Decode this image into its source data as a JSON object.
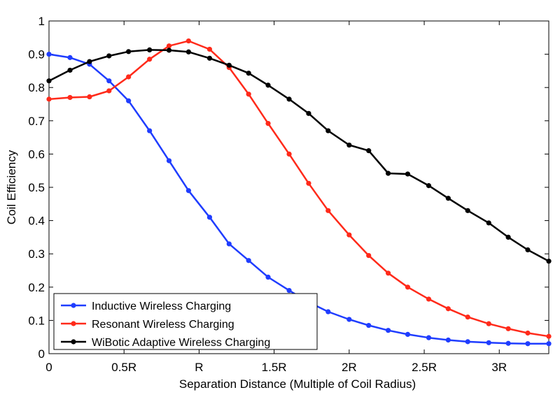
{
  "chart_data": {
    "type": "line",
    "xlabel": "Separation Distance (Multiple of Coil Radius)",
    "ylabel": "Coil Efficiency",
    "xlim": [
      0,
      3.33
    ],
    "ylim": [
      0,
      1
    ],
    "x_ticks": [
      {
        "value": 0,
        "label": "0"
      },
      {
        "value": 0.5,
        "label": "0.5R"
      },
      {
        "value": 1,
        "label": "R"
      },
      {
        "value": 1.5,
        "label": "1.5R"
      },
      {
        "value": 2,
        "label": "2R"
      },
      {
        "value": 2.5,
        "label": "2.5R"
      },
      {
        "value": 3,
        "label": "3R"
      }
    ],
    "y_ticks": [
      {
        "value": 0,
        "label": "0"
      },
      {
        "value": 0.1,
        "label": "0.1"
      },
      {
        "value": 0.2,
        "label": "0.2"
      },
      {
        "value": 0.3,
        "label": "0.3"
      },
      {
        "value": 0.4,
        "label": "0.4"
      },
      {
        "value": 0.5,
        "label": "0.5"
      },
      {
        "value": 0.6,
        "label": "0.6"
      },
      {
        "value": 0.7,
        "label": "0.7"
      },
      {
        "value": 0.8,
        "label": "0.8"
      },
      {
        "value": 0.9,
        "label": "0.9"
      },
      {
        "value": 1,
        "label": "1"
      }
    ],
    "x": [
      0,
      0.14,
      0.27,
      0.4,
      0.53,
      0.67,
      0.8,
      0.93,
      1.07,
      1.2,
      1.33,
      1.46,
      1.6,
      1.73,
      1.86,
      2.0,
      2.13,
      2.26,
      2.39,
      2.53,
      2.66,
      2.79,
      2.93,
      3.06,
      3.19,
      3.33
    ],
    "series": [
      {
        "name": "Inductive Wireless Charging",
        "color": "#1f3dff",
        "values": [
          0.9,
          0.89,
          0.87,
          0.82,
          0.76,
          0.67,
          0.58,
          0.49,
          0.41,
          0.33,
          0.28,
          0.23,
          0.19,
          0.155,
          0.126,
          0.103,
          0.085,
          0.07,
          0.058,
          0.048,
          0.041,
          0.036,
          0.033,
          0.031,
          0.03,
          0.03
        ]
      },
      {
        "name": "Resonant Wireless Charging",
        "color": "#ff2a1a",
        "values": [
          0.765,
          0.77,
          0.772,
          0.79,
          0.832,
          0.885,
          0.925,
          0.94,
          0.915,
          0.86,
          0.78,
          0.692,
          0.6,
          0.512,
          0.43,
          0.357,
          0.295,
          0.242,
          0.2,
          0.164,
          0.135,
          0.11,
          0.09,
          0.075,
          0.062,
          0.052
        ]
      },
      {
        "name": "WiBotic Adaptive Wireless Charging",
        "color": "#000000",
        "values": [
          0.82,
          0.852,
          0.878,
          0.895,
          0.908,
          0.913,
          0.912,
          0.907,
          0.888,
          0.867,
          0.843,
          0.807,
          0.765,
          0.722,
          0.67,
          0.627,
          0.61,
          0.542,
          0.54,
          0.505,
          0.467,
          0.43,
          0.393,
          0.35,
          0.312,
          0.278
        ]
      }
    ],
    "legend": "bottom-left",
    "grid": false
  }
}
